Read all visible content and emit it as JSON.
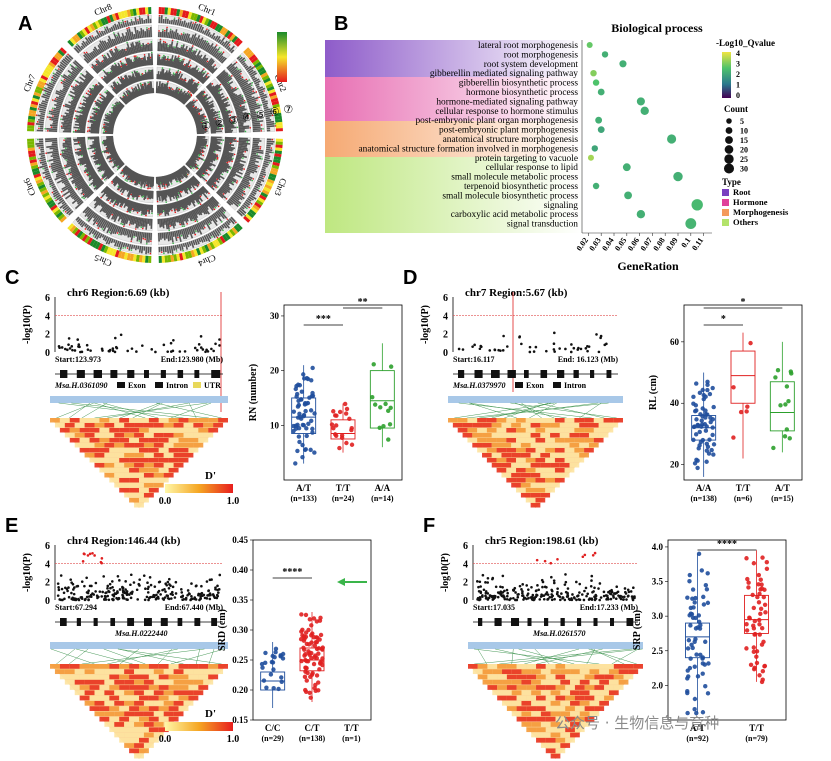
{
  "panels": {
    "A": {
      "label": "A",
      "chromosomes": [
        "Chr1",
        "Chr2",
        "Chr3",
        "Chr4",
        "Chr5",
        "Chr6",
        "Chr7",
        "Chr8"
      ],
      "track_numbers": [
        "①",
        "②",
        "③",
        "④",
        "⑤",
        "⑥",
        "⑦"
      ]
    },
    "B": {
      "label": "B",
      "title": "Biological process",
      "xlabel": "GeneRation",
      "qvalue_legend": {
        "title": "-Log10_Qvalue",
        "ticks": [
          "4",
          "3",
          "2",
          "1",
          "0"
        ]
      },
      "count_legend": {
        "title": "Count",
        "ticks": [
          "5",
          "10",
          "15",
          "20",
          "25",
          "30"
        ]
      },
      "type_legend": {
        "title": "Type",
        "items": [
          {
            "name": "Root",
            "color": "#7a3fc0"
          },
          {
            "name": "Hormone",
            "color": "#e0409a"
          },
          {
            "name": "Morphogenesis",
            "color": "#f49a5a"
          },
          {
            "name": "Others",
            "color": "#b3e36a"
          }
        ]
      }
    },
    "C": {
      "label": "C",
      "region": "chr6 Region:6.69 (kb)",
      "start": "Start:123.973",
      "end": "End:123.980 (Mb)",
      "gene": "Msa.H.0361090",
      "legend": [
        "Exon",
        "Intron",
        "UTR"
      ],
      "dprime": "D'",
      "d_ticks": [
        "0.0",
        "1.0"
      ],
      "y_ticks": [
        "0",
        "2",
        "4",
        "6"
      ],
      "box_ylabel": "RN (number)",
      "box_yticks": [
        "10",
        "20",
        "30"
      ],
      "groups": [
        "A/T",
        "T/T",
        "A/A"
      ],
      "ns": [
        "(n=133)",
        "(n=24)",
        "(n=14)"
      ],
      "sig": [
        "***",
        "**"
      ]
    },
    "D": {
      "label": "D",
      "region": "chr7  Region:5.67 (kb)",
      "start": "Start:16.117",
      "end": "End: 16.123 (Mb)",
      "gene": "Msa.H.0379970",
      "legend": [
        "Exon",
        "Intron"
      ],
      "dprime": "D'",
      "d_ticks": [
        "0.0",
        "1.0"
      ],
      "y_ticks": [
        "0",
        "2",
        "4",
        "6"
      ],
      "box_ylabel": "RL (cm)",
      "box_yticks": [
        "20",
        "40",
        "60"
      ],
      "groups": [
        "A/A",
        "T/T",
        "A/T"
      ],
      "ns": [
        "(n=138)",
        "(n=6)",
        "(n=15)"
      ],
      "sig": [
        "*",
        "*"
      ]
    },
    "E": {
      "label": "E",
      "region": "chr4 Region:146.44 (kb)",
      "start": "Start:67.294",
      "end": "End:67.440 (Mb)",
      "gene": "Msa.H.0222440",
      "dprime": "D'",
      "d_ticks": [
        "0.0",
        "1.0"
      ],
      "y_ticks": [
        "0",
        "2",
        "4",
        "6"
      ],
      "box_ylabel": "SRD (cm)",
      "box_yticks": [
        "0.15",
        "0.20",
        "0.25",
        "0.30",
        "0.35",
        "0.40",
        "0.45"
      ],
      "groups": [
        "C/C",
        "C/T",
        "T/T"
      ],
      "ns": [
        "(n=29)",
        "(n=138)",
        "(n=1)"
      ],
      "sig": [
        "****"
      ]
    },
    "F": {
      "label": "F",
      "region": "chr5 Region:198.61 (kb)",
      "start": "Start:17.035",
      "end": "End:17.233 (Mb)",
      "gene": "Msa.H.0261570",
      "dprime": "D'",
      "d_ticks": [
        "0.0",
        "1.0"
      ],
      "y_ticks": [
        "0",
        "2",
        "4",
        "6"
      ],
      "box_ylabel": "SRP (cm)",
      "box_yticks": [
        "2.0",
        "2.5",
        "3.0",
        "3.5",
        "4.0"
      ],
      "groups": [
        "A/T",
        "T/T"
      ],
      "ns": [
        "(n=92)",
        "(n=79)"
      ],
      "sig": [
        "****"
      ]
    }
  },
  "pval_label": "-log10(P)",
  "watermark": "公众号 · 生物信息与育种",
  "chart_data": [
    {
      "type": "scatter",
      "title": "Biological process",
      "xlabel": "GeneRation",
      "ylabel": "",
      "xlim": [
        0.015,
        0.115
      ],
      "x_ticks": [
        "0.02",
        "0.03",
        "0.04",
        "0.05",
        "0.06",
        "0.07",
        "0.08",
        "0.09",
        "0.1",
        "0.11"
      ],
      "categories": [
        "lateral root morphogenesis",
        "root morphogenesis",
        "root system development",
        "gibberellin mediated signaling pathway",
        "gibberellin biosynthetic process",
        "hormone biosynthetic process",
        "hormone-mediated signaling pathway",
        "cellular response to hormone stimulus",
        "post-embryonic plant organ morphogenesis",
        "post-embryonic plant morphogenesis",
        "anatomical structure morphogenesis",
        "anatomical structure formation involved in morphogenesis",
        "protein targeting to vacuole",
        "cellular response to lipid",
        "small molecule metabolic process",
        "terpenoid biosynthetic process",
        "small molecule biosynthetic process",
        "signaling",
        "carboxylic acid metabolic process",
        "signal transduction"
      ],
      "category_types": [
        "Root",
        "Root",
        "Root",
        "Hormone",
        "Hormone",
        "Hormone",
        "Hormone",
        "Hormone",
        "Morphogenesis",
        "Morphogenesis",
        "Morphogenesis",
        "Morphogenesis",
        "Others",
        "Others",
        "Others",
        "Others",
        "Others",
        "Others",
        "Others",
        "Others"
      ],
      "gene_ratio": [
        0.021,
        0.033,
        0.047,
        0.024,
        0.026,
        0.03,
        0.061,
        0.064,
        0.028,
        0.03,
        0.085,
        0.025,
        0.022,
        0.05,
        0.09,
        0.026,
        0.051,
        0.105,
        0.061,
        0.1
      ],
      "count": [
        4,
        5,
        7,
        5,
        5,
        6,
        10,
        11,
        6,
        6,
        14,
        5,
        4,
        9,
        15,
        5,
        9,
        25,
        11,
        22
      ],
      "neg_log10_q": [
        3.2,
        2.6,
        2.6,
        3.5,
        3.0,
        2.6,
        2.6,
        2.6,
        2.6,
        2.4,
        2.6,
        2.4,
        3.8,
        2.6,
        2.6,
        2.6,
        2.6,
        2.8,
        2.6,
        2.7
      ]
    }
  ]
}
